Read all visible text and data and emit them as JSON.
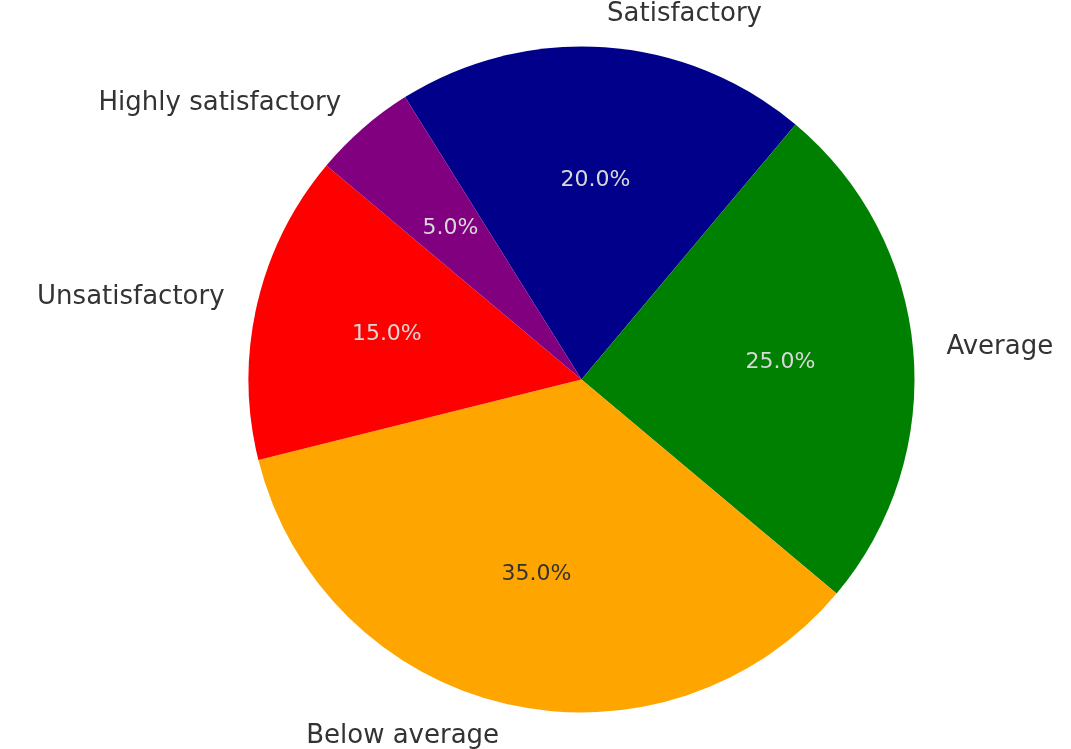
{
  "chart_data": {
    "type": "pie",
    "categories": [
      "Satisfactory",
      "Average",
      "Below average",
      "Unsatisfactory",
      "Highly satisfactory"
    ],
    "values": [
      20,
      25,
      35,
      15,
      5
    ],
    "colors": [
      "#00008b",
      "#008000",
      "#ffa500",
      "#ff0000",
      "#800080"
    ],
    "value_labels": [
      "20.0%",
      "25.0%",
      "35.0%",
      "15.0%",
      "5.0%"
    ],
    "legend": false
  }
}
